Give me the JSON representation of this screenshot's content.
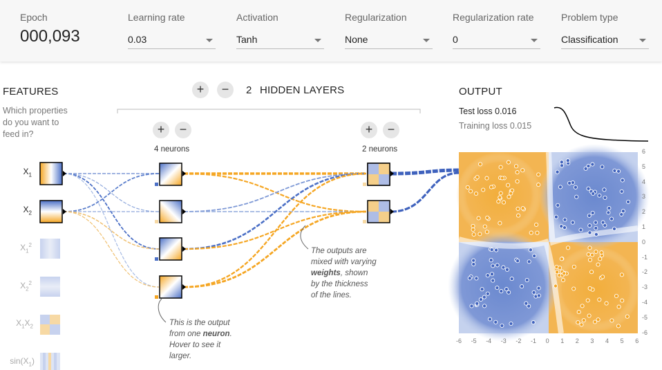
{
  "epoch": {
    "label": "Epoch",
    "value": "000,093"
  },
  "controls": [
    {
      "key": "learning_rate",
      "label": "Learning rate",
      "value": "0.03"
    },
    {
      "key": "activation",
      "label": "Activation",
      "value": "Tanh"
    },
    {
      "key": "regularization",
      "label": "Regularization",
      "value": "None"
    },
    {
      "key": "reg_rate",
      "label": "Regularization rate",
      "value": "0"
    },
    {
      "key": "problem_type",
      "label": "Problem type",
      "value": "Classification"
    }
  ],
  "features": {
    "heading": "FEATURES",
    "subtitle_lines": [
      "Which properties",
      "do you want to",
      "feed in?"
    ],
    "items": [
      "X1",
      "X2",
      "X1²",
      "X2²",
      "X1X2",
      "sin(X1)"
    ]
  },
  "hidden": {
    "count": "2",
    "label": "HIDDEN LAYERS",
    "layer1_neurons": "4 neurons",
    "layer2_neurons": "2 neurons",
    "plus": "+",
    "minus": "−"
  },
  "notes": {
    "neuron_note": {
      "pre": "This is the output from one",
      "bold": "neuron",
      "post": ". Hover to see it larger."
    },
    "weights_note": {
      "pre": "The outputs are mixed with varying",
      "bold": "weights",
      "post": ", shown by the thickness of the lines."
    }
  },
  "output": {
    "heading": "OUTPUT",
    "test_loss_label": "Test loss",
    "test_loss": "0.016",
    "training_loss_label": "Training loss",
    "training_loss": "0.015",
    "x_ticks": [
      "-6",
      "-5",
      "-4",
      "-3",
      "-2",
      "-1",
      "0",
      "1",
      "2",
      "3",
      "4",
      "5",
      "6"
    ],
    "y_ticks": [
      "6",
      "5",
      "4",
      "3",
      "2",
      "1",
      "0",
      "-1",
      "-2",
      "-3",
      "-4",
      "-5",
      "-6"
    ]
  },
  "colors": {
    "orange": "#f5a623",
    "blue": "#4c70c6",
    "light_orange": "#f0c070",
    "light_blue": "#8fa8dc"
  }
}
